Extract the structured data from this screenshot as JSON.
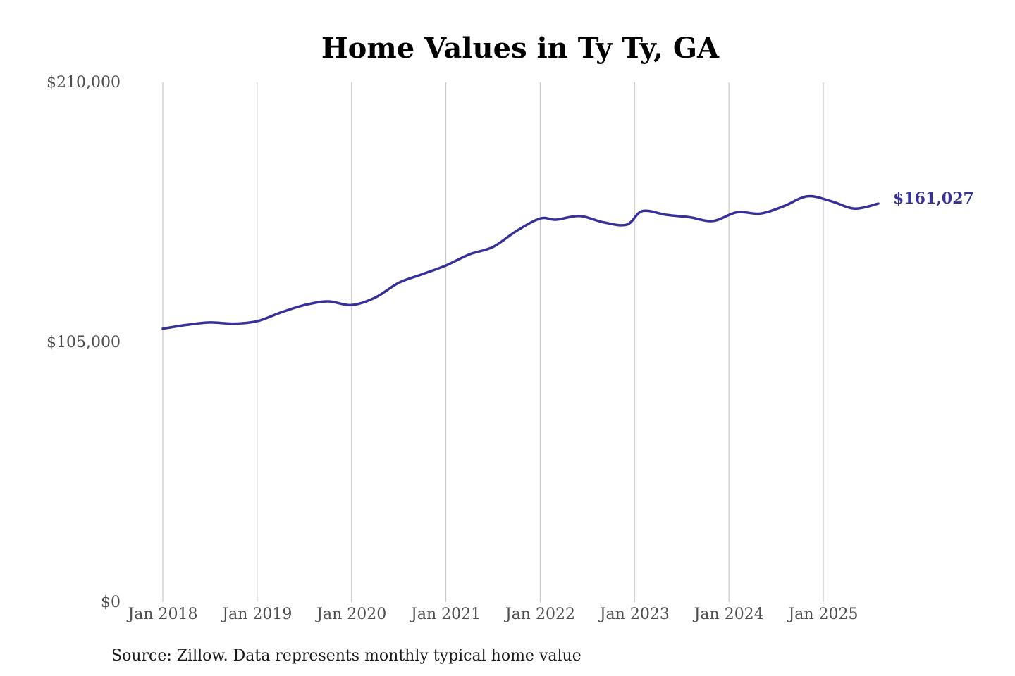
{
  "chart_data": {
    "type": "line",
    "title": "Home Values in Ty Ty, GA",
    "xlabel": "",
    "ylabel": "",
    "ylim": [
      0,
      210000
    ],
    "y_ticks": [
      {
        "value": 0,
        "label": "$0"
      },
      {
        "value": 105000,
        "label": "$105,000"
      },
      {
        "value": 210000,
        "label": "$210,000"
      }
    ],
    "x_ticks": [
      {
        "date": "2018-01",
        "label": "Jan 2018"
      },
      {
        "date": "2019-01",
        "label": "Jan 2019"
      },
      {
        "date": "2020-01",
        "label": "Jan 2020"
      },
      {
        "date": "2021-01",
        "label": "Jan 2021"
      },
      {
        "date": "2022-01",
        "label": "Jan 2022"
      },
      {
        "date": "2023-01",
        "label": "Jan 2023"
      },
      {
        "date": "2024-01",
        "label": "Jan 2024"
      },
      {
        "date": "2025-01",
        "label": "Jan 2025"
      }
    ],
    "grid": "vertical",
    "line_color": "#35309a",
    "end_label": "$161,027",
    "source": "Source: Zillow. Data represents monthly typical home value",
    "series": [
      {
        "x": [
          "2018-01",
          "2018-04",
          "2018-07",
          "2018-10",
          "2019-01",
          "2019-04",
          "2019-07",
          "2019-10",
          "2020-01",
          "2020-04",
          "2020-07",
          "2020-10",
          "2021-01",
          "2021-04",
          "2021-07",
          "2021-10",
          "2022-01",
          "2022-03",
          "2022-06",
          "2022-09",
          "2022-12",
          "2023-02",
          "2023-05",
          "2023-08",
          "2023-11",
          "2024-02",
          "2024-05",
          "2024-08",
          "2024-11",
          "2025-02",
          "2025-05",
          "2025-08"
        ],
        "values": [
          110500,
          112000,
          113000,
          112500,
          113500,
          117000,
          120000,
          121500,
          120000,
          123000,
          129000,
          132500,
          136000,
          140500,
          143500,
          150000,
          155000,
          154500,
          156000,
          153500,
          152500,
          158000,
          156500,
          155500,
          154000,
          157500,
          157000,
          160000,
          164000,
          162000,
          159000,
          161027
        ]
      }
    ]
  }
}
